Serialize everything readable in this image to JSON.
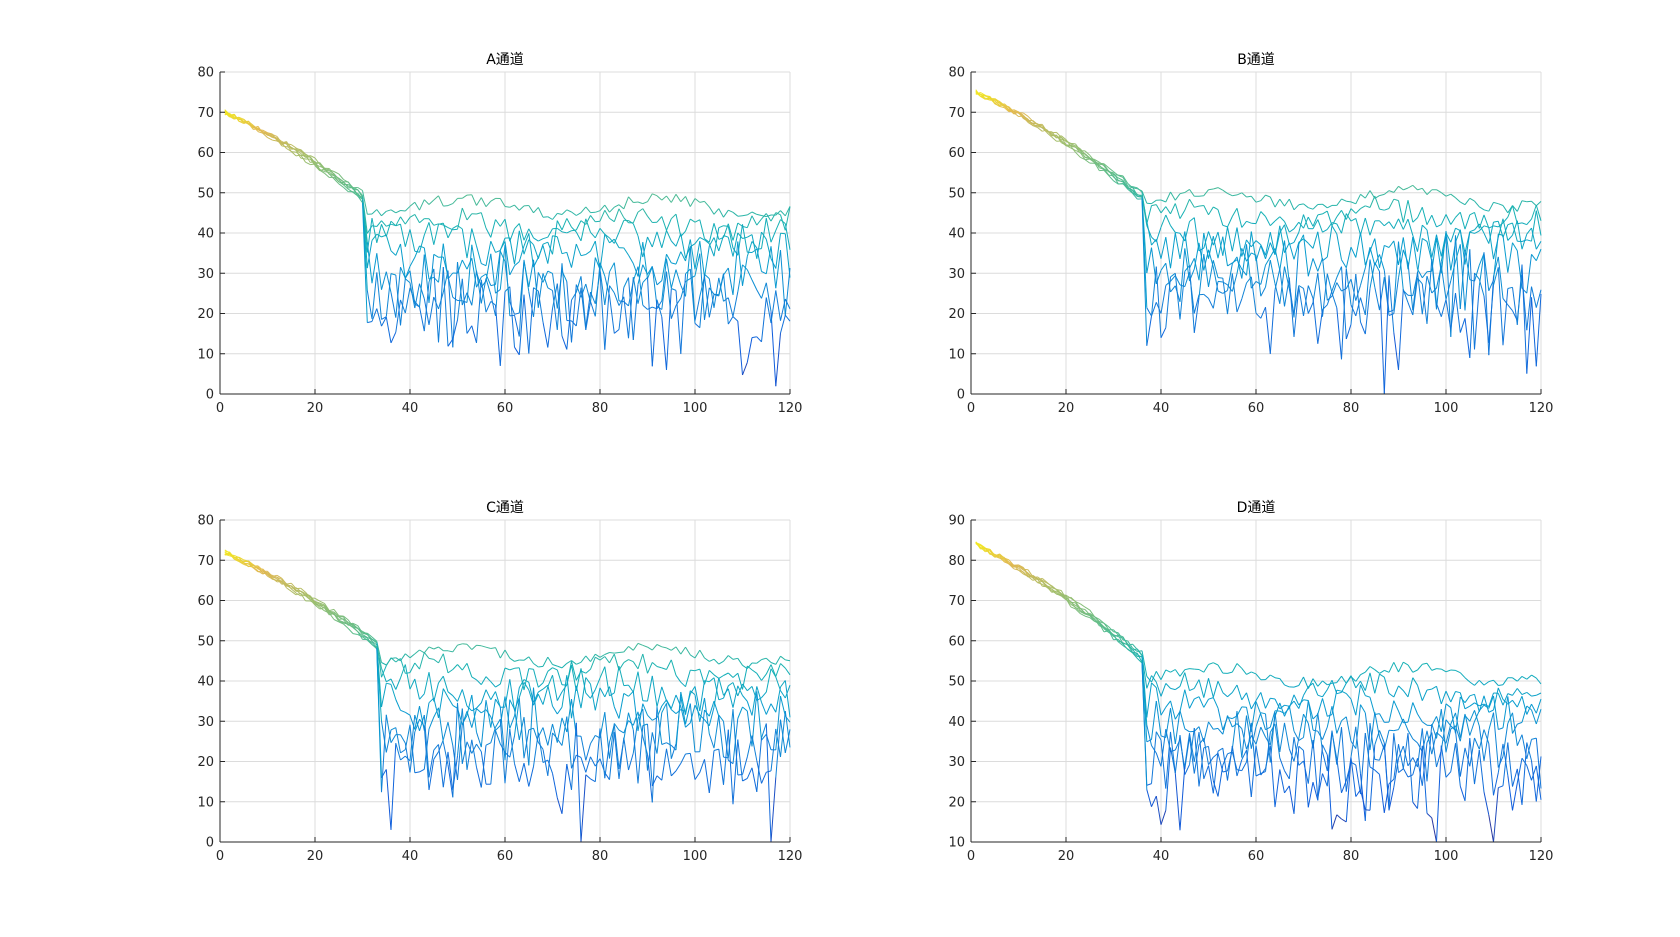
{
  "window": {
    "title": ""
  },
  "chart_data": [
    {
      "type": "line",
      "title": "A通道",
      "xlim": [
        0,
        120
      ],
      "ylim": [
        0,
        80
      ],
      "xticks": [
        0,
        20,
        40,
        60,
        80,
        100,
        120
      ],
      "yticks": [
        0,
        10,
        20,
        30,
        40,
        50,
        60,
        70,
        80
      ],
      "grid": true,
      "colormap": "parula",
      "series_count": 7,
      "start_value": 70,
      "knee_x": 30,
      "knee_value": 50,
      "plateau_max": 50,
      "min_dips": [
        {
          "x": 59,
          "y": 7
        },
        {
          "x": 94,
          "y": 6
        },
        {
          "x": 97,
          "y": 10
        },
        {
          "x": 81,
          "y": 11
        },
        {
          "x": 112,
          "y": 14
        }
      ]
    },
    {
      "type": "line",
      "title": "B通道",
      "xlim": [
        0,
        120
      ],
      "ylim": [
        0,
        80
      ],
      "xticks": [
        0,
        20,
        40,
        60,
        80,
        100,
        120
      ],
      "yticks": [
        0,
        10,
        20,
        30,
        40,
        50,
        60,
        70,
        80
      ],
      "grid": true,
      "colormap": "parula",
      "series_count": 7,
      "start_value": 75,
      "knee_x": 36,
      "knee_value": 50,
      "plateau_max": 52,
      "min_dips": [
        {
          "x": 37,
          "y": 12
        },
        {
          "x": 63,
          "y": 10
        },
        {
          "x": 87,
          "y": 0
        },
        {
          "x": 90,
          "y": 6
        }
      ]
    },
    {
      "type": "line",
      "title": "C通道",
      "xlim": [
        0,
        120
      ],
      "ylim": [
        0,
        80
      ],
      "xticks": [
        0,
        20,
        40,
        60,
        80,
        100,
        120
      ],
      "yticks": [
        0,
        10,
        20,
        30,
        40,
        50,
        60,
        70,
        80
      ],
      "grid": true,
      "colormap": "parula",
      "series_count": 7,
      "start_value": 72,
      "knee_x": 33,
      "knee_value": 50,
      "plateau_max": 50,
      "min_dips": [
        {
          "x": 36,
          "y": 3
        },
        {
          "x": 72,
          "y": 7
        },
        {
          "x": 76,
          "y": 0
        },
        {
          "x": 116,
          "y": 0
        }
      ]
    },
    {
      "type": "line",
      "title": "D通道",
      "xlim": [
        0,
        120
      ],
      "ylim": [
        10,
        90
      ],
      "xticks": [
        0,
        20,
        40,
        60,
        80,
        100,
        120
      ],
      "yticks": [
        10,
        20,
        30,
        40,
        50,
        60,
        70,
        80,
        90
      ],
      "grid": true,
      "colormap": "parula",
      "series_count": 7,
      "start_value": 84,
      "knee_x": 36,
      "knee_value": 57,
      "plateau_max": 55,
      "min_dips": [
        {
          "x": 50,
          "y": 29
        },
        {
          "x": 68,
          "y": 17
        },
        {
          "x": 79,
          "y": 15
        },
        {
          "x": 83,
          "y": 18
        },
        {
          "x": 97,
          "y": 16
        }
      ]
    }
  ]
}
